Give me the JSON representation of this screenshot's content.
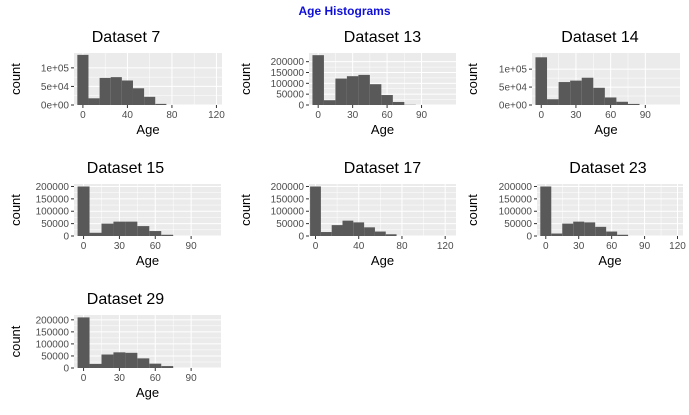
{
  "title": "Age Histograms",
  "colors": {
    "bar": "#595959",
    "panel": "#ebebeb",
    "grid": "#ffffff",
    "title": "#1010d8",
    "text": "#000000",
    "tick_text": "#4d4d4d"
  },
  "chart_data": [
    {
      "type": "bar",
      "title": "Dataset 7",
      "xlabel": "Age",
      "ylabel": "count",
      "xlim": [
        -8,
        125
      ],
      "ylim": [
        0,
        140000
      ],
      "xticks": [
        0,
        40,
        80,
        120
      ],
      "xtick_labels": [
        "0",
        "40",
        "80",
        "120"
      ],
      "yticks": [
        0,
        50000,
        100000
      ],
      "ytick_labels": [
        "0e+00",
        "5e+04",
        "1e+05"
      ],
      "bin_width": 10,
      "bins": [
        0,
        10,
        20,
        30,
        40,
        50,
        60,
        70,
        80,
        90,
        100,
        110
      ],
      "values": [
        135000,
        18000,
        73000,
        75000,
        66000,
        45000,
        22000,
        3000,
        0,
        0,
        0,
        0
      ]
    },
    {
      "type": "bar",
      "title": "Dataset 13",
      "xlabel": "Age",
      "ylabel": "count",
      "xlim": [
        -8,
        120
      ],
      "ylim": [
        0,
        240000
      ],
      "xticks": [
        0,
        30,
        60,
        90
      ],
      "xtick_labels": [
        "0",
        "30",
        "60",
        "90"
      ],
      "yticks": [
        0,
        50000,
        100000,
        150000,
        200000
      ],
      "ytick_labels": [
        "0",
        "50000",
        "100000",
        "150000",
        "200000"
      ],
      "bin_width": 10,
      "bins": [
        0,
        10,
        20,
        30,
        40,
        50,
        60,
        70,
        80,
        90,
        100,
        110
      ],
      "values": [
        230000,
        22000,
        122000,
        133000,
        139000,
        96000,
        46000,
        14000,
        1000,
        0,
        0,
        0
      ]
    },
    {
      "type": "bar",
      "title": "Dataset 14",
      "xlabel": "Age",
      "ylabel": "count",
      "xlim": [
        -8,
        120
      ],
      "ylim": [
        0,
        145000
      ],
      "xticks": [
        0,
        30,
        60,
        90
      ],
      "xtick_labels": [
        "0",
        "30",
        "60",
        "90"
      ],
      "yticks": [
        0,
        50000,
        100000
      ],
      "ytick_labels": [
        "0e+00",
        "5e+04",
        "1e+05"
      ],
      "bin_width": 10,
      "bins": [
        0,
        10,
        20,
        30,
        40,
        50,
        60,
        70,
        80,
        90,
        100,
        110
      ],
      "values": [
        133000,
        16000,
        64000,
        68000,
        76000,
        48000,
        21000,
        9000,
        3000,
        0,
        0,
        0
      ]
    },
    {
      "type": "bar",
      "title": "Dataset 15",
      "xlabel": "Age",
      "ylabel": "count",
      "xlim": [
        -8,
        115
      ],
      "ylim": [
        0,
        210000
      ],
      "xticks": [
        0,
        30,
        60,
        90
      ],
      "xtick_labels": [
        "0",
        "30",
        "60",
        "90"
      ],
      "yticks": [
        0,
        50000,
        100000,
        150000,
        200000
      ],
      "ytick_labels": [
        "0",
        "50000",
        "100000",
        "150000",
        "200000"
      ],
      "bin_width": 10,
      "bins": [
        0,
        10,
        20,
        30,
        40,
        50,
        60,
        70,
        80,
        90,
        100,
        110
      ],
      "values": [
        200000,
        13000,
        50000,
        58000,
        58000,
        40000,
        20000,
        5000,
        0,
        0,
        0,
        0
      ]
    },
    {
      "type": "bar",
      "title": "Dataset 17",
      "xlabel": "Age",
      "ylabel": "count",
      "xlim": [
        -6,
        130
      ],
      "ylim": [
        0,
        210000
      ],
      "xticks": [
        0,
        40,
        80,
        120
      ],
      "xtick_labels": [
        "0",
        "40",
        "80",
        "120"
      ],
      "yticks": [
        0,
        50000,
        100000,
        150000,
        200000
      ],
      "ytick_labels": [
        "0",
        "50000",
        "100000",
        "150000",
        "200000"
      ],
      "bin_width": 10,
      "bins": [
        0,
        10,
        20,
        30,
        40,
        50,
        60,
        70,
        80,
        90,
        100,
        110,
        120
      ],
      "values": [
        200000,
        16000,
        44000,
        62000,
        55000,
        35000,
        18000,
        7000,
        0,
        0,
        0,
        0,
        0
      ]
    },
    {
      "type": "bar",
      "title": "Dataset 23",
      "xlabel": "Age",
      "ylabel": "count",
      "xlim": [
        -8,
        125
      ],
      "ylim": [
        0,
        210000
      ],
      "xticks": [
        0,
        30,
        60,
        90,
        120
      ],
      "xtick_labels": [
        "0",
        "30",
        "60",
        "90",
        "120"
      ],
      "yticks": [
        0,
        50000,
        100000,
        150000,
        200000
      ],
      "ytick_labels": [
        "0",
        "50000",
        "100000",
        "150000",
        "200000"
      ],
      "bin_width": 10,
      "bins": [
        0,
        10,
        20,
        30,
        40,
        50,
        60,
        70,
        80,
        90,
        100,
        110,
        120
      ],
      "values": [
        200000,
        10000,
        50000,
        58000,
        55000,
        37000,
        18000,
        5000,
        0,
        0,
        0,
        0,
        0
      ]
    },
    {
      "type": "bar",
      "title": "Dataset 29",
      "xlabel": "Age",
      "ylabel": "count",
      "xlim": [
        -8,
        115
      ],
      "ylim": [
        0,
        220000
      ],
      "xticks": [
        0,
        30,
        60,
        90
      ],
      "xtick_labels": [
        "0",
        "30",
        "60",
        "90"
      ],
      "yticks": [
        0,
        50000,
        100000,
        150000,
        200000
      ],
      "ytick_labels": [
        "0",
        "50000",
        "100000",
        "150000",
        "200000"
      ],
      "bin_width": 10,
      "bins": [
        0,
        10,
        20,
        30,
        40,
        50,
        60,
        70,
        80,
        90,
        100,
        110
      ],
      "values": [
        210000,
        17000,
        56000,
        65000,
        63000,
        40000,
        18000,
        8000,
        0,
        0,
        0,
        0
      ]
    }
  ]
}
